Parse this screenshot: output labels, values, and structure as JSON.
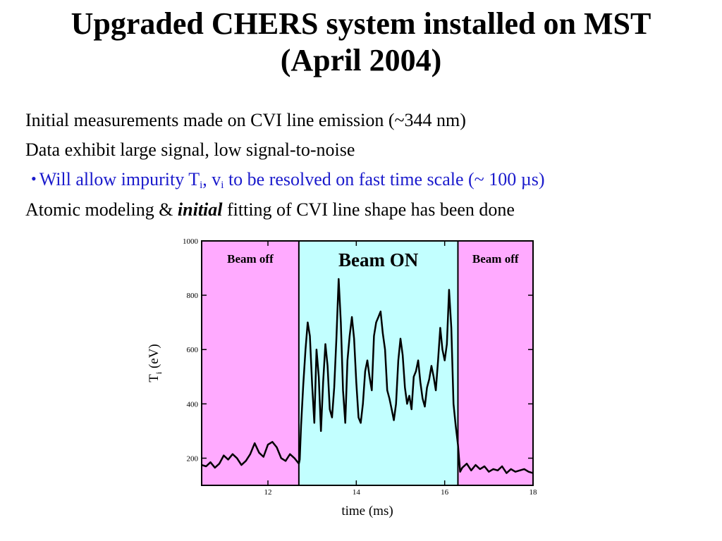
{
  "slide": {
    "title_line1": "Upgraded CHERS system installed on MST",
    "title_line2": "(April 2004)",
    "bullets": [
      "Initial measurements made on CVI line emission (~344 nm)",
      "Data exhibit large signal, low signal-to-noise"
    ],
    "sub_bullet": {
      "symbol": "•",
      "text_a": "Will allow impurity T",
      "sub_a": "i",
      "text_b": ", v",
      "sub_b": "i",
      "text_c": " to be resolved on fast time scale (~ 100 µs)",
      "color": "#1a1acc"
    },
    "last_bullet": {
      "pre": "Atomic modeling & ",
      "emph": "initial",
      "post": " fitting of CVI line shape has been done"
    }
  },
  "chart_data": {
    "type": "line",
    "xlabel": "time (ms)",
    "ylabel_main": "T",
    "ylabel_sub": "i",
    "ylabel_unit": " (eV)",
    "xlim": [
      10.5,
      18
    ],
    "ylim": [
      100,
      1000
    ],
    "xticks": [
      12,
      14,
      16,
      18
    ],
    "yticks": [
      200,
      400,
      600,
      800,
      1000
    ],
    "grid": false,
    "regions": [
      {
        "label": "Beam off",
        "x0": 10.5,
        "x1": 12.7,
        "color": "#ffaaff",
        "bold_size": "small"
      },
      {
        "label": "Beam ON",
        "x0": 12.7,
        "x1": 16.3,
        "color": "#c2ffff",
        "bold_size": "large"
      },
      {
        "label": "Beam off",
        "x0": 16.3,
        "x1": 18,
        "color": "#ffaaff",
        "bold_size": "small"
      }
    ],
    "series": [
      {
        "color": "#000000",
        "x": [
          10.5,
          10.6,
          10.7,
          10.8,
          10.9,
          11.0,
          11.1,
          11.2,
          11.3,
          11.4,
          11.5,
          11.6,
          11.7,
          11.8,
          11.9,
          12.0,
          12.1,
          12.2,
          12.3,
          12.4,
          12.5,
          12.6,
          12.7,
          12.72,
          12.75,
          12.8,
          12.85,
          12.9,
          12.95,
          13.0,
          13.05,
          13.1,
          13.15,
          13.2,
          13.25,
          13.3,
          13.35,
          13.4,
          13.45,
          13.5,
          13.55,
          13.6,
          13.65,
          13.7,
          13.75,
          13.8,
          13.85,
          13.9,
          13.95,
          14.0,
          14.05,
          14.1,
          14.15,
          14.2,
          14.25,
          14.3,
          14.35,
          14.4,
          14.45,
          14.5,
          14.55,
          14.6,
          14.65,
          14.7,
          14.75,
          14.8,
          14.85,
          14.9,
          14.95,
          15.0,
          15.05,
          15.1,
          15.15,
          15.2,
          15.25,
          15.3,
          15.35,
          15.4,
          15.45,
          15.5,
          15.55,
          15.6,
          15.65,
          15.7,
          15.75,
          15.8,
          15.85,
          15.9,
          15.95,
          16.0,
          16.05,
          16.1,
          16.15,
          16.2,
          16.25,
          16.3,
          16.35,
          16.4,
          16.5,
          16.6,
          16.7,
          16.8,
          16.9,
          17.0,
          17.1,
          17.2,
          17.3,
          17.4,
          17.5,
          17.6,
          17.7,
          17.8,
          17.9,
          18.0
        ],
        "y": [
          175,
          170,
          185,
          165,
          180,
          210,
          195,
          215,
          200,
          175,
          190,
          215,
          255,
          220,
          205,
          250,
          260,
          240,
          200,
          190,
          215,
          200,
          180,
          195,
          320,
          470,
          600,
          700,
          650,
          470,
          330,
          600,
          500,
          300,
          480,
          620,
          540,
          380,
          350,
          460,
          640,
          860,
          700,
          450,
          330,
          560,
          650,
          720,
          640,
          480,
          350,
          330,
          400,
          520,
          560,
          500,
          450,
          650,
          700,
          720,
          740,
          660,
          600,
          450,
          420,
          380,
          340,
          400,
          560,
          640,
          580,
          460,
          400,
          430,
          380,
          500,
          520,
          560,
          480,
          420,
          390,
          460,
          490,
          540,
          500,
          450,
          560,
          680,
          600,
          560,
          620,
          820,
          680,
          400,
          320,
          250,
          150,
          165,
          180,
          155,
          175,
          160,
          170,
          150,
          160,
          155,
          170,
          145,
          160,
          150,
          155,
          160,
          150,
          145
        ]
      }
    ]
  }
}
